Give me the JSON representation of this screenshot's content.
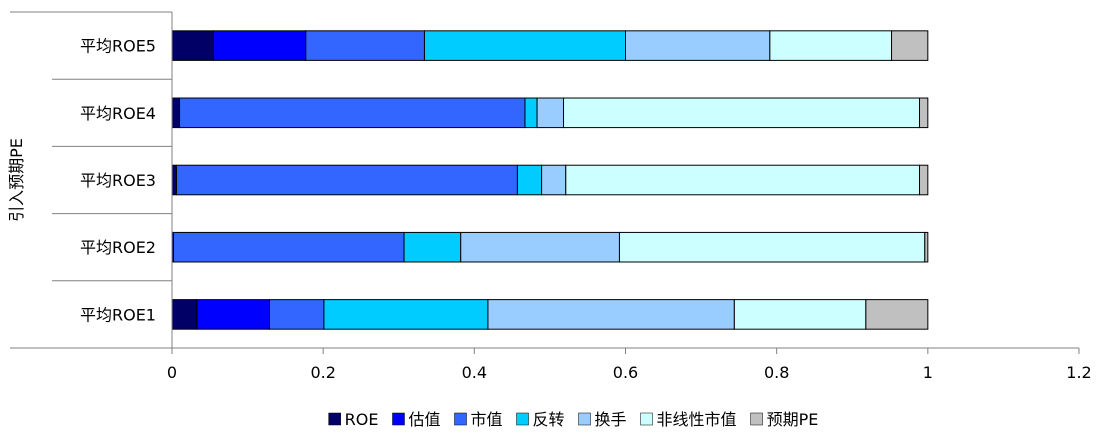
{
  "chart_data": {
    "type": "bar",
    "orientation": "horizontal",
    "stacked": true,
    "group_label": "引入预期PE",
    "categories": [
      "平均ROE5",
      "平均ROE4",
      "平均ROE3",
      "平均ROE2",
      "平均ROE1"
    ],
    "series": [
      {
        "name": "ROE",
        "color": "#000066",
        "values": [
          0.055,
          0.01,
          0.006,
          0.002,
          0.033
        ]
      },
      {
        "name": "估值",
        "color": "#0000ff",
        "values": [
          0.122,
          0.0,
          0.0,
          0.0,
          0.096
        ]
      },
      {
        "name": "市值",
        "color": "#3366ff",
        "values": [
          0.157,
          0.457,
          0.451,
          0.305,
          0.072
        ]
      },
      {
        "name": "反转",
        "color": "#00ccff",
        "values": [
          0.266,
          0.016,
          0.032,
          0.075,
          0.217
        ]
      },
      {
        "name": "换手",
        "color": "#99ccff",
        "values": [
          0.191,
          0.035,
          0.032,
          0.21,
          0.326
        ]
      },
      {
        "name": "非线性市值",
        "color": "#ccffff",
        "values": [
          0.161,
          0.471,
          0.468,
          0.404,
          0.174
        ]
      },
      {
        "name": "预期PE",
        "color": "#c0c0c0",
        "values": [
          0.048,
          0.011,
          0.011,
          0.004,
          0.082
        ]
      }
    ],
    "xlim": [
      0,
      1.2
    ],
    "xticks": [
      0,
      0.2,
      0.4,
      0.6,
      0.8,
      1,
      1.2
    ],
    "xtick_labels": [
      "0",
      "0.2",
      "0.4",
      "0.6",
      "0.8",
      "1",
      "1.2"
    ],
    "title": "",
    "xlabel": "",
    "ylabel": "",
    "grid": false,
    "legend_position": "bottom"
  }
}
